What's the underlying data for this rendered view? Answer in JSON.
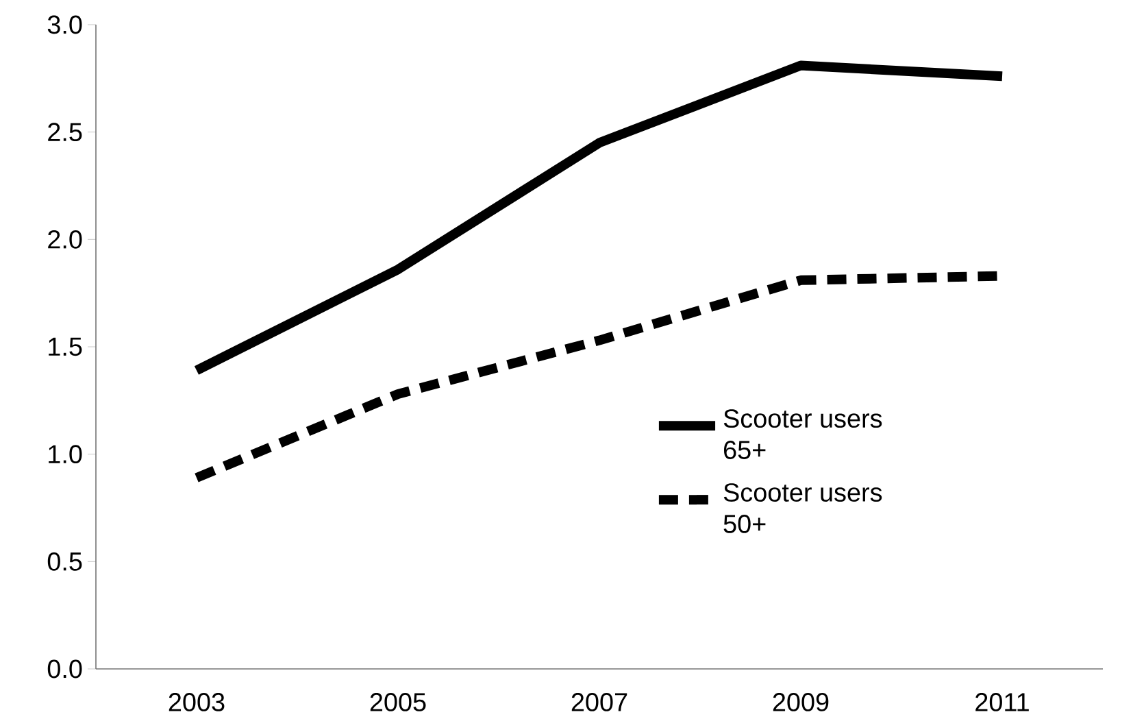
{
  "chart_data": {
    "type": "line",
    "categories": [
      "2003",
      "2005",
      "2007",
      "2009",
      "2011"
    ],
    "series": [
      {
        "name": "Scooter users 65+",
        "color": "#000000",
        "line_style": "solid",
        "values": [
          1.39,
          1.86,
          2.45,
          2.81,
          2.76
        ]
      },
      {
        "name": "Scooter users 50+",
        "color": "#000000",
        "line_style": "dashed",
        "values": [
          0.89,
          1.28,
          1.53,
          1.81,
          1.83
        ]
      }
    ],
    "ylim": [
      0,
      3
    ],
    "yticks": [
      {
        "value": 0,
        "label": "0.0"
      },
      {
        "value": 0.5,
        "label": "0.5"
      },
      {
        "value": 1,
        "label": "1.0"
      },
      {
        "value": 1.5,
        "label": "1.5"
      },
      {
        "value": 2,
        "label": "2.0"
      },
      {
        "value": 2.5,
        "label": "2.5"
      },
      {
        "value": 3,
        "label": "3.0"
      }
    ],
    "grid": false,
    "legend": "right"
  }
}
